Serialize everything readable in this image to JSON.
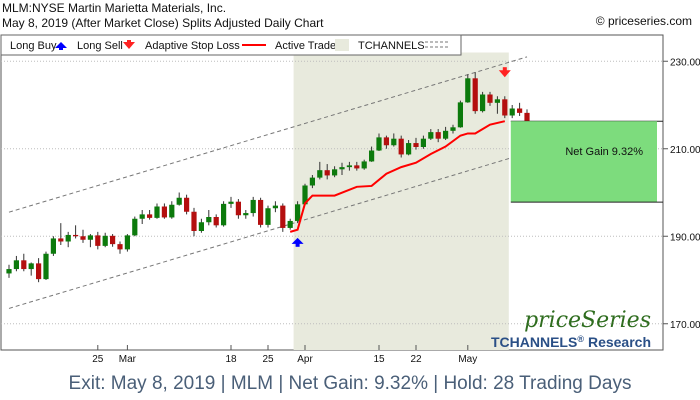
{
  "header": {
    "title": "MLM:NYSE Martin Marietta Materials, Inc.",
    "subtitle": "May 8, 2019 (After Market Close)  Splits Adjusted Daily Chart",
    "copyright": "© priceseries.com"
  },
  "legend": {
    "long_buy": "Long Buy",
    "long_sell": "Long Sell",
    "stop_loss": "Adaptive Stop Loss",
    "active_trade": "Active Trade",
    "tchannels": "TCHANNELS"
  },
  "annotation": {
    "net_gain": "Net Gain 9.32%"
  },
  "branding": {
    "logo": "priceSeries",
    "research": "TCHANNELS",
    "registered": "®",
    "research_suffix": "Research"
  },
  "footer": {
    "text": "Exit: May 8, 2019 | MLM | Net Gain: 9.32% | Hold: 28 Trading Days"
  },
  "colors": {
    "up": "#0c7a0c",
    "down": "#b40f0f",
    "stop_loss": "#ff0000",
    "active_trade_bg": "#e8eadd",
    "gain_box": "#7ddc7d",
    "buy_arrow": "#0000ff",
    "sell_arrow": "#ff2222",
    "channel": "#777777",
    "footer_text": "#4a5f78"
  },
  "chart_data": {
    "type": "candlestick",
    "ylim": [
      164,
      236
    ],
    "yticks": [
      170,
      190,
      210,
      230
    ],
    "ytick_labels": [
      "170.00",
      "190.00",
      "210.00",
      "230.00"
    ],
    "xtick_labels": [
      {
        "label": "25",
        "index": 12
      },
      {
        "label": "Mar",
        "index": 16
      },
      {
        "label": "18",
        "index": 30
      },
      {
        "label": "25",
        "index": 35
      },
      {
        "label": "Apr",
        "index": 40
      },
      {
        "label": "15",
        "index": 50
      },
      {
        "label": "22",
        "index": 55
      },
      {
        "label": "May",
        "index": 62
      }
    ],
    "active_trade": {
      "start_index": 39,
      "end_index": 67
    },
    "entry": {
      "index": 39,
      "price": 188.5
    },
    "exit": {
      "index": 67,
      "price": 227.5,
      "gain_pct": 9.32
    },
    "gain_box": {
      "low": 197.8,
      "high": 216.3
    },
    "channel_upper": [
      {
        "index": 0,
        "price": 195.5
      },
      {
        "index": 70,
        "price": 231.0
      }
    ],
    "channel_lower": [
      {
        "index": 0,
        "price": 173.5
      },
      {
        "index": 70,
        "price": 209.0
      }
    ],
    "candles": [
      [
        181.5,
        183.5,
        180.5,
        182.5
      ],
      [
        182.5,
        185.5,
        182,
        184.5
      ],
      [
        184.5,
        186,
        182,
        182.5
      ],
      [
        182.5,
        184,
        181,
        183.8
      ],
      [
        183.8,
        185,
        179.5,
        180.2
      ],
      [
        180.2,
        186.5,
        180,
        186
      ],
      [
        186,
        190,
        185.5,
        189.5
      ],
      [
        189.5,
        193,
        188,
        188.8
      ],
      [
        188.8,
        191,
        187.5,
        190.3
      ],
      [
        190.3,
        192.5,
        189.5,
        190
      ],
      [
        190,
        191.5,
        188.5,
        189.2
      ],
      [
        189.2,
        190.5,
        187.5,
        190.2
      ],
      [
        190.2,
        191,
        187,
        187.8
      ],
      [
        187.8,
        190.8,
        187.5,
        190.1
      ],
      [
        190.1,
        190.5,
        187.6,
        188.2
      ],
      [
        188.2,
        188.8,
        186,
        187
      ],
      [
        187,
        190.5,
        186.5,
        190.2
      ],
      [
        190.2,
        194.5,
        190,
        194
      ],
      [
        194,
        196,
        192.8,
        195
      ],
      [
        195,
        196,
        193.8,
        194.2
      ],
      [
        194.2,
        197.5,
        194,
        196.8
      ],
      [
        196.8,
        197.5,
        194,
        194.3
      ],
      [
        194.3,
        198,
        194,
        197.2
      ],
      [
        197.2,
        200,
        197,
        198.8
      ],
      [
        198.8,
        199.5,
        195,
        195.6
      ],
      [
        195.6,
        196.5,
        190,
        191.2
      ],
      [
        191.2,
        194,
        190.8,
        193.2
      ],
      [
        193.2,
        196,
        192.5,
        194.4
      ],
      [
        194.4,
        195,
        192,
        192.5
      ],
      [
        192.5,
        198,
        192.2,
        197.4
      ],
      [
        197.4,
        199,
        196.5,
        197.9
      ],
      [
        197.9,
        198.5,
        194,
        194.8
      ],
      [
        194.8,
        196,
        194,
        195.3
      ],
      [
        195.3,
        199,
        194.5,
        198.3
      ],
      [
        198.3,
        198.8,
        192,
        192.6
      ],
      [
        192.6,
        197,
        192,
        196.4
      ],
      [
        196.4,
        198,
        195.5,
        197
      ],
      [
        197,
        197.5,
        191,
        191.9
      ],
      [
        191.9,
        194,
        191.5,
        193.5
      ],
      [
        193.5,
        198,
        193,
        197.3
      ],
      [
        197.3,
        202,
        197,
        201.6
      ],
      [
        201.6,
        204,
        201,
        203.4
      ],
      [
        203.4,
        207,
        203,
        205.1
      ],
      [
        205.1,
        206.5,
        203,
        203.9
      ],
      [
        203.9,
        206,
        203.5,
        205.3
      ],
      [
        205.3,
        206.8,
        204,
        205.8
      ],
      [
        205.8,
        207,
        205,
        206.2
      ],
      [
        206.2,
        207,
        205,
        205.5
      ],
      [
        205.5,
        207.5,
        205.2,
        207.1
      ],
      [
        207.1,
        210.5,
        207,
        209.6
      ],
      [
        209.6,
        213.5,
        209.5,
        212.6
      ],
      [
        212.6,
        213,
        210,
        210.8
      ],
      [
        210.8,
        213.5,
        210.5,
        212.3
      ],
      [
        212.3,
        213,
        208,
        208.7
      ],
      [
        208.7,
        212,
        208.5,
        211.3
      ],
      [
        211.3,
        212.5,
        209.8,
        210.4
      ],
      [
        210.4,
        213,
        210,
        212.3
      ],
      [
        212.3,
        214.5,
        212,
        213.8
      ],
      [
        213.8,
        214.5,
        211.5,
        212.3
      ],
      [
        212.3,
        215,
        212,
        214.1
      ],
      [
        214.1,
        215.5,
        213.5,
        214.9
      ],
      [
        214.9,
        221,
        214.8,
        220.6
      ],
      [
        220.6,
        227,
        220.5,
        226.1
      ],
      [
        226.1,
        227.5,
        218,
        218.6
      ],
      [
        218.6,
        223,
        218.3,
        222.4
      ],
      [
        222.4,
        223,
        219.8,
        220.5
      ],
      [
        220.5,
        222,
        218,
        221.3
      ],
      [
        221.3,
        222,
        217,
        217.6
      ],
      [
        217.6,
        220,
        217,
        219.2
      ],
      [
        219.2,
        220.5,
        217.5,
        218.2
      ],
      [
        218.2,
        219,
        213,
        213.7
      ]
    ],
    "stop_loss": [
      {
        "index": 38,
        "price": 191.0
      },
      {
        "index": 39,
        "price": 191.5
      },
      {
        "index": 40,
        "price": 197.5
      },
      {
        "index": 41,
        "price": 199.3
      },
      {
        "index": 44,
        "price": 199.3
      },
      {
        "index": 47,
        "price": 201.3
      },
      {
        "index": 49,
        "price": 201.5
      },
      {
        "index": 51,
        "price": 204.3
      },
      {
        "index": 53,
        "price": 205.8
      },
      {
        "index": 55,
        "price": 206.8
      },
      {
        "index": 57,
        "price": 208.8
      },
      {
        "index": 59,
        "price": 210.5
      },
      {
        "index": 61,
        "price": 213.0
      },
      {
        "index": 62,
        "price": 213.5
      },
      {
        "index": 63,
        "price": 213.5
      },
      {
        "index": 65,
        "price": 215.5
      },
      {
        "index": 67,
        "price": 216.3
      }
    ]
  }
}
